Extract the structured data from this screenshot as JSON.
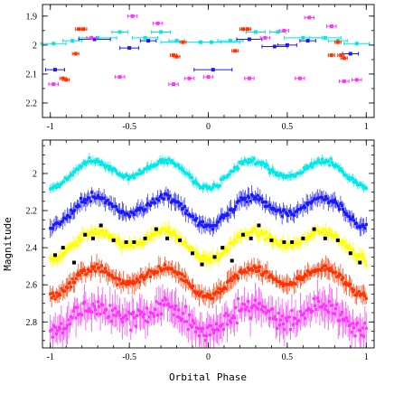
{
  "chart_data": [
    {
      "type": "scatter",
      "panel": "top",
      "xlim": [
        -1.05,
        1.05
      ],
      "ylim": [
        2.25,
        1.86
      ],
      "y_inverted": true,
      "x_ticks": [
        -1,
        -0.5,
        0,
        0.5,
        1
      ],
      "x_tick_labels": [
        "-1",
        "-0.5",
        "0",
        "0.5",
        "1"
      ],
      "y_ticks": [
        1.9,
        2.0,
        2.1,
        2.2
      ],
      "y_tick_labels": [
        "1.9",
        "2",
        "2.1",
        "2.2"
      ],
      "xlabel": "",
      "ylabel": "",
      "series": [
        {
          "color": "#00e8e8",
          "points": [
            [
              -0.98,
              1.995,
              0.08
            ],
            [
              -0.86,
              1.985,
              0.06
            ],
            [
              -0.7,
              1.975,
              0.12
            ],
            [
              -0.56,
              1.955,
              0.05
            ],
            [
              -0.4,
              1.975,
              0.08
            ],
            [
              -0.3,
              1.955,
              0.06
            ],
            [
              -0.2,
              1.985,
              0.05
            ],
            [
              -0.05,
              1.99,
              0.25
            ],
            [
              0.02,
              1.99,
              0.06
            ],
            [
              0.14,
              1.985,
              0.08
            ],
            [
              0.3,
              1.955,
              0.06
            ],
            [
              0.44,
              1.955,
              0.05
            ],
            [
              0.6,
              1.975,
              0.12
            ],
            [
              0.74,
              1.975,
              0.1
            ],
            [
              0.82,
              1.985,
              0.06
            ],
            [
              0.94,
              1.995,
              0.08
            ]
          ]
        },
        {
          "color": "#1a1aff",
          "points": [
            [
              -0.97,
              2.085,
              0.06
            ],
            [
              -0.72,
              1.98,
              0.1
            ],
            [
              -0.5,
              2.01,
              0.06
            ],
            [
              -0.38,
              1.985,
              0.05
            ],
            [
              0.03,
              2.085,
              0.12
            ],
            [
              0.26,
              1.98,
              0.08
            ],
            [
              0.42,
              2.005,
              0.08
            ],
            [
              0.5,
              2.0,
              0.06
            ],
            [
              0.63,
              1.985,
              0.05
            ],
            [
              0.9,
              2.03,
              0.05
            ]
          ]
        },
        {
          "color": "#ff3300",
          "points": [
            [
              -0.92,
              2.115,
              0.02
            ],
            [
              -0.9,
              2.12,
              0.02
            ],
            [
              -0.82,
              1.945,
              0.02
            ],
            [
              -0.79,
              1.945,
              0.02
            ],
            [
              -0.84,
              2.03,
              0.02
            ],
            [
              -0.22,
              2.035,
              0.02
            ],
            [
              -0.2,
              2.04,
              0.02
            ],
            [
              -0.16,
              1.99,
              0.02
            ],
            [
              0.22,
              1.945,
              0.02
            ],
            [
              0.25,
              1.945,
              0.02
            ],
            [
              0.17,
              2.02,
              0.02
            ],
            [
              0.78,
              2.035,
              0.02
            ],
            [
              0.84,
              2.035,
              0.02
            ],
            [
              0.82,
              1.99,
              0.02
            ],
            [
              0.86,
              2.045,
              0.02
            ]
          ]
        },
        {
          "color": "#ff33ff",
          "points": [
            [
              -0.98,
              2.135,
              0.03
            ],
            [
              -0.74,
              1.975,
              0.03
            ],
            [
              -0.56,
              2.11,
              0.03
            ],
            [
              -0.48,
              1.9,
              0.03
            ],
            [
              -0.32,
              1.925,
              0.03
            ],
            [
              -0.22,
              2.135,
              0.03
            ],
            [
              -0.12,
              2.115,
              0.03
            ],
            [
              0.0,
              2.11,
              0.03
            ],
            [
              0.26,
              2.115,
              0.03
            ],
            [
              0.36,
              1.975,
              0.03
            ],
            [
              0.48,
              1.95,
              0.03
            ],
            [
              0.58,
              2.115,
              0.03
            ],
            [
              0.64,
              1.905,
              0.03
            ],
            [
              0.78,
              1.935,
              0.03
            ],
            [
              0.86,
              2.125,
              0.03
            ],
            [
              0.94,
              2.12,
              0.03
            ]
          ]
        }
      ]
    },
    {
      "type": "scatter",
      "panel": "bottom",
      "xlim": [
        -1.05,
        1.05
      ],
      "ylim": [
        2.94,
        1.82
      ],
      "y_inverted": true,
      "x_ticks": [
        -1,
        -0.5,
        0,
        0.5,
        1
      ],
      "x_tick_labels": [
        "-1",
        "-0.5",
        "0",
        "0.5",
        "1"
      ],
      "y_ticks": [
        2.0,
        2.2,
        2.4,
        2.6,
        2.8
      ],
      "y_tick_labels": [
        "2",
        "2.2",
        "2.4",
        "2.6",
        "2.8"
      ],
      "xlabel": "Orbital Phase",
      "ylabel": "Magnitude",
      "series": [
        {
          "color": "#00e8e8",
          "base": 2.0,
          "amp1": 0.055,
          "amp2": 0.03,
          "noise": 0.015,
          "err": 0.02
        },
        {
          "color": "#1a1aff",
          "base": 2.2,
          "amp1": 0.06,
          "amp2": 0.035,
          "noise": 0.02,
          "err": 0.035
        },
        {
          "color": "#ffff00",
          "base": 2.38,
          "amp1": 0.055,
          "amp2": 0.04,
          "noise": 0.02,
          "err": 0.03
        },
        {
          "color": "#ff3300",
          "base": 2.58,
          "amp1": 0.055,
          "amp2": 0.035,
          "noise": 0.02,
          "err": 0.04
        },
        {
          "color": "#ff33ff",
          "base": 2.78,
          "amp1": 0.05,
          "amp2": 0.03,
          "noise": 0.05,
          "err": 0.07
        }
      ],
      "markers": {
        "color": "#000000",
        "points": [
          [
            -0.97,
            2.44
          ],
          [
            -0.92,
            2.4
          ],
          [
            -0.85,
            2.48
          ],
          [
            -0.78,
            2.33
          ],
          [
            -0.73,
            2.35
          ],
          [
            -0.68,
            2.28
          ],
          [
            -0.6,
            2.36
          ],
          [
            -0.52,
            2.37
          ],
          [
            -0.47,
            2.37
          ],
          [
            -0.4,
            2.35
          ],
          [
            -0.33,
            2.3
          ],
          [
            -0.26,
            2.35
          ],
          [
            -0.18,
            2.36
          ],
          [
            -0.1,
            2.43
          ],
          [
            -0.04,
            2.49
          ],
          [
            0.04,
            2.45
          ],
          [
            0.09,
            2.4
          ],
          [
            0.15,
            2.47
          ],
          [
            0.22,
            2.33
          ],
          [
            0.27,
            2.35
          ],
          [
            0.32,
            2.28
          ],
          [
            0.4,
            2.36
          ],
          [
            0.48,
            2.37
          ],
          [
            0.53,
            2.37
          ],
          [
            0.6,
            2.35
          ],
          [
            0.67,
            2.3
          ],
          [
            0.74,
            2.35
          ],
          [
            0.82,
            2.36
          ],
          [
            0.9,
            2.43
          ],
          [
            0.96,
            2.48
          ]
        ]
      }
    }
  ]
}
